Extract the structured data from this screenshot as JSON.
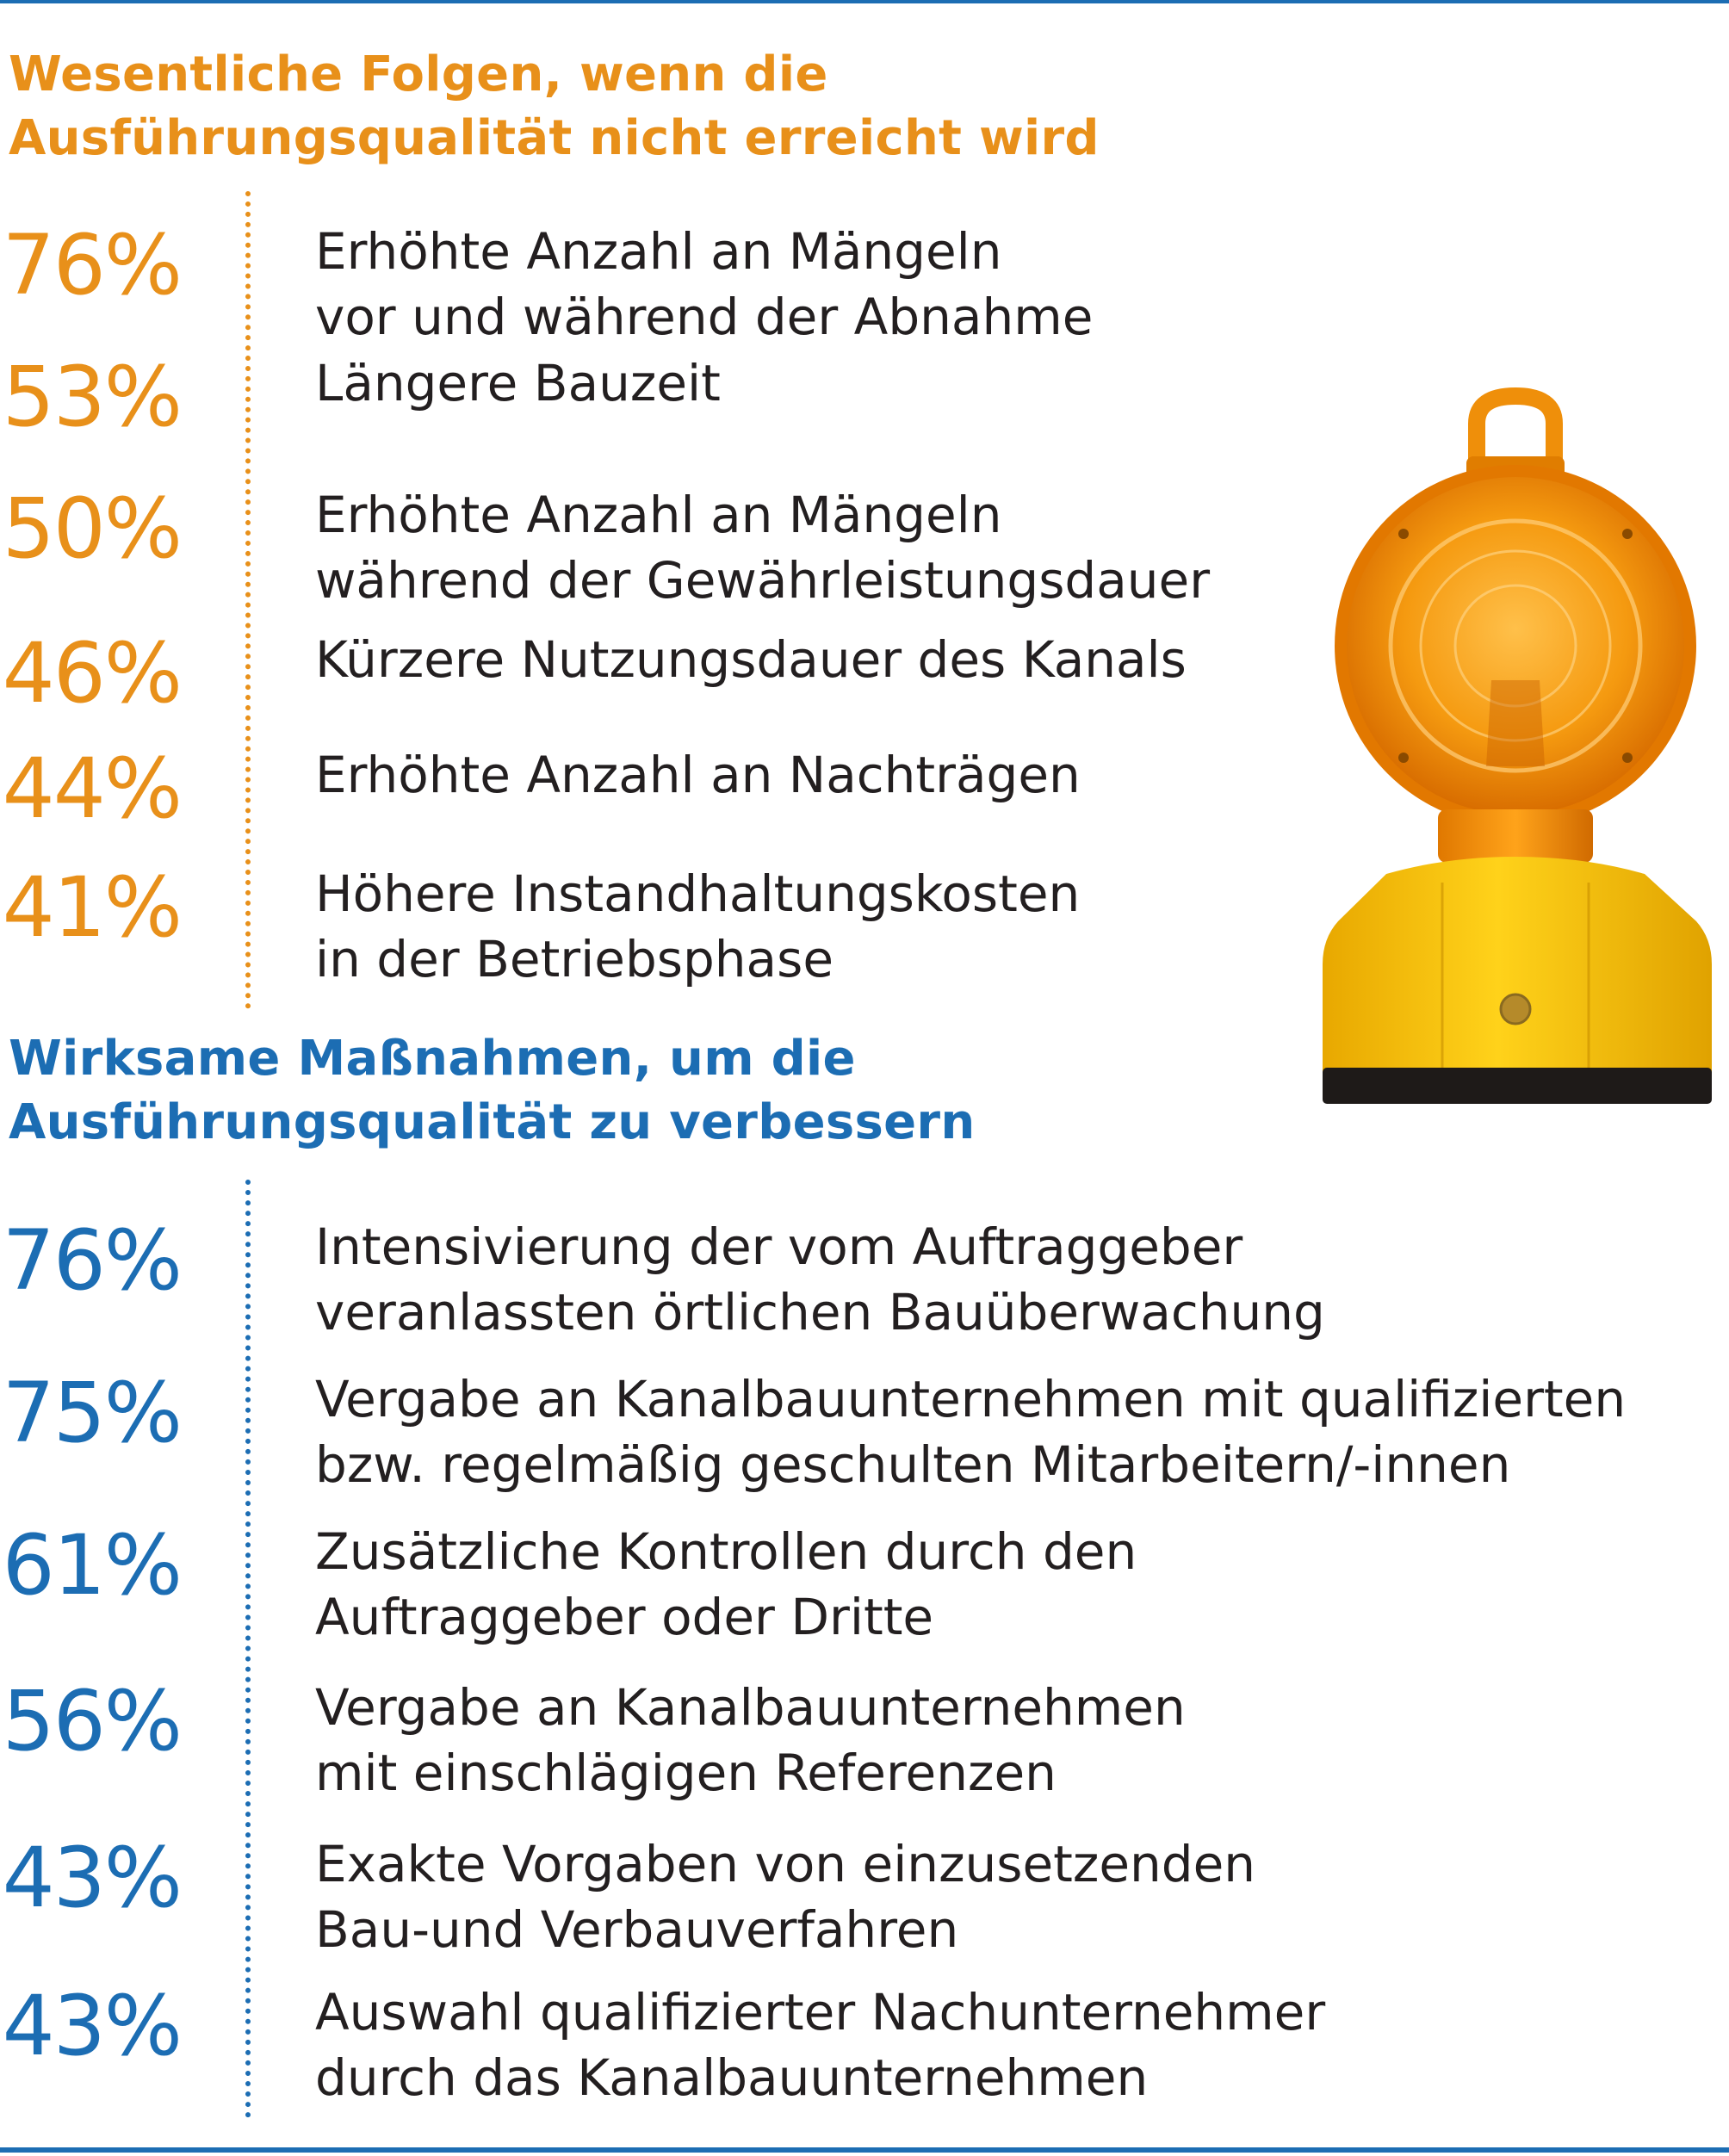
{
  "colors": {
    "orange": "#e8901a",
    "blue": "#1c6db3",
    "text": "#231f20"
  },
  "chart_data": [
    {
      "type": "table",
      "title": "Wesentliche Folgen, wenn die Ausführungsqualität nicht erreicht wird",
      "title_lines": [
        "Wesentliche Folgen, wenn die",
        "Ausführungsqualität nicht erreicht wird"
      ],
      "items": [
        {
          "value": 76,
          "pct": "76%",
          "lines": [
            "Erhöhte Anzahl an Mängeln",
            "vor und während der Abnahme"
          ]
        },
        {
          "value": 53,
          "pct": "53%",
          "lines": [
            "Längere Bauzeit"
          ]
        },
        {
          "value": 50,
          "pct": "50%",
          "lines": [
            "Erhöhte Anzahl an Mängeln",
            "während der Gewährleistungsdauer"
          ]
        },
        {
          "value": 46,
          "pct": "46%",
          "lines": [
            "Kürzere Nutzungsdauer des Kanals"
          ]
        },
        {
          "value": 44,
          "pct": "44%",
          "lines": [
            "Erhöhte Anzahl an Nachträgen"
          ]
        },
        {
          "value": 41,
          "pct": "41%",
          "lines": [
            "Höhere Instandhaltungskosten",
            "in der Betriebsphase"
          ]
        }
      ]
    },
    {
      "type": "table",
      "title": "Wirksame Maßnahmen, um die Ausführungsqualität zu verbessern",
      "title_lines": [
        "Wirksame Maßnahmen, um die",
        "Ausführungsqualität zu verbessern"
      ],
      "items": [
        {
          "value": 76,
          "pct": "76%",
          "lines": [
            "Intensivierung der vom Auftraggeber",
            "veranlassten örtlichen Bauüberwachung"
          ]
        },
        {
          "value": 75,
          "pct": "75%",
          "lines": [
            "Vergabe an Kanalbauunternehmen mit qualifizierten",
            "bzw. regelmäßig geschulten Mitarbeitern/-innen"
          ]
        },
        {
          "value": 61,
          "pct": "61%",
          "lines": [
            "Zusätzliche Kontrollen durch den",
            "Auftraggeber oder Dritte"
          ]
        },
        {
          "value": 56,
          "pct": "56%",
          "lines": [
            "Vergabe an Kanalbauunternehmen",
            "mit einschlägigen Referenzen"
          ]
        },
        {
          "value": 43,
          "pct": "43%",
          "lines": [
            "Exakte Vorgaben von einzusetzenden",
            "Bau-und Verbauverfahren"
          ]
        },
        {
          "value": 43,
          "pct": "43%",
          "lines": [
            "Auswahl qualifizierter Nachunternehmer",
            "durch das Kanalbauunternehmen"
          ]
        }
      ]
    }
  ]
}
